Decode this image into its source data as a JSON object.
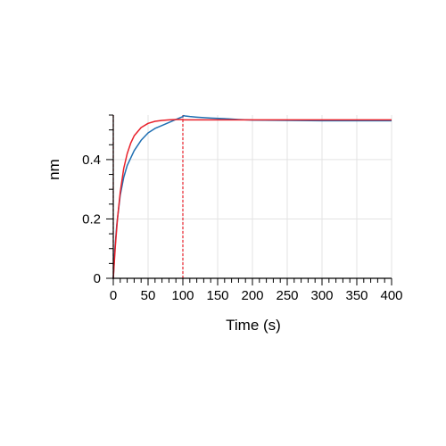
{
  "chart_data": {
    "type": "line",
    "xlabel": "Time (s)",
    "ylabel": "nm",
    "xlim": [
      0,
      400
    ],
    "ylim": [
      0,
      0.55
    ],
    "x_ticks": [
      0,
      50,
      100,
      150,
      200,
      250,
      300,
      350,
      400
    ],
    "x_tick_labels": [
      "0",
      "50",
      "100",
      "150",
      "200",
      "250",
      "300",
      "350",
      "400"
    ],
    "y_ticks": [
      0,
      0.2,
      0.4
    ],
    "y_tick_labels": [
      "0",
      "0.2",
      "0.4"
    ],
    "grid": true,
    "vertical_markers": [
      {
        "x": 0,
        "color": "#e8202a",
        "style": "dashed"
      },
      {
        "x": 100,
        "color": "#e8202a",
        "style": "dashed"
      }
    ],
    "series": [
      {
        "color": "#1f6fb2",
        "style": "solid",
        "x": [
          0,
          2,
          5,
          10,
          15,
          20,
          30,
          40,
          50,
          60,
          70,
          80,
          90,
          95,
          100,
          101,
          103,
          110,
          120,
          140,
          160,
          180,
          200,
          250,
          300,
          350,
          400
        ],
        "y": [
          0,
          0.09,
          0.18,
          0.28,
          0.34,
          0.38,
          0.43,
          0.465,
          0.49,
          0.505,
          0.515,
          0.525,
          0.535,
          0.54,
          0.545,
          0.548,
          0.547,
          0.545,
          0.543,
          0.54,
          0.538,
          0.535,
          0.533,
          0.532,
          0.531,
          0.531,
          0.531
        ]
      },
      {
        "color": "#e8202a",
        "style": "solid",
        "x": [
          0,
          3,
          6,
          10,
          15,
          20,
          25,
          30,
          40,
          50,
          60,
          70,
          80,
          90,
          100,
          101,
          150,
          200,
          250,
          300,
          350,
          400
        ],
        "y": [
          0,
          0.11,
          0.2,
          0.29,
          0.37,
          0.42,
          0.455,
          0.48,
          0.508,
          0.522,
          0.529,
          0.532,
          0.534,
          0.535,
          0.535,
          0.534,
          0.534,
          0.534,
          0.534,
          0.534,
          0.534,
          0.534
        ]
      }
    ]
  }
}
